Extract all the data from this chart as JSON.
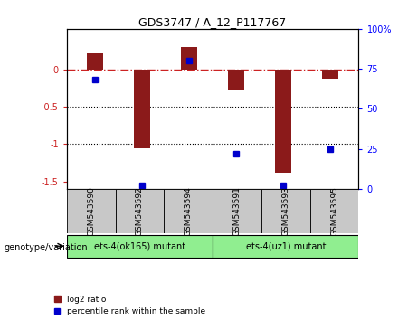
{
  "title": "GDS3747 / A_12_P117767",
  "samples": [
    "GSM543590",
    "GSM543592",
    "GSM543594",
    "GSM543591",
    "GSM543593",
    "GSM543595"
  ],
  "log2_ratio": [
    0.22,
    -1.05,
    0.3,
    -0.28,
    -1.38,
    -0.12
  ],
  "percentile_rank": [
    68,
    2,
    80,
    22,
    2,
    25
  ],
  "bar_color": "#8B1A1A",
  "dot_color": "#0000CC",
  "ylim_left": [
    -1.6,
    0.55
  ],
  "ylim_right": [
    0,
    100
  ],
  "hline_0_color": "#CC2222",
  "hline_0_style": "-.",
  "hline_dot1": -0.5,
  "hline_dot2": -1.0,
  "right_yticks": [
    0,
    25,
    50,
    75,
    100
  ],
  "right_yticklabels": [
    "0",
    "25",
    "50",
    "75",
    "100%"
  ],
  "left_yticks": [
    0.0,
    -0.5,
    -1.0,
    -1.5
  ],
  "left_yticklabels": [
    "0",
    "-0.5",
    "-1",
    "-1.5"
  ],
  "group1_label": "ets-4(ok165) mutant",
  "group2_label": "ets-4(uz1) mutant",
  "group_color": "#90EE90",
  "gray_color": "#C8C8C8",
  "legend_label1": "log2 ratio",
  "legend_label2": "percentile rank within the sample",
  "geno_label": "genotype/variation",
  "bar_width": 0.35
}
